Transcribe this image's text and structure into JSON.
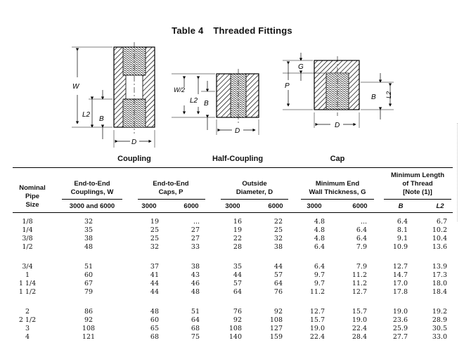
{
  "title": {
    "number": "Table 4",
    "name": "Threaded Fittings"
  },
  "figures": [
    {
      "caption": "Coupling",
      "labels": [
        "W",
        "L2",
        "B",
        "D"
      ]
    },
    {
      "caption": "Half-Coupling",
      "labels": [
        "W/2",
        "L2",
        "B",
        "D"
      ]
    },
    {
      "caption": "Cap",
      "labels": [
        "G",
        "P",
        "B",
        "L2",
        "D"
      ]
    }
  ],
  "headers": {
    "nominal": [
      "Nominal",
      "Pipe",
      "Size"
    ],
    "couplings": [
      "End-to-End",
      "Couplings, W"
    ],
    "caps": [
      "End-to-End",
      "Caps, P"
    ],
    "outside": [
      "Outside",
      "Diameter, D"
    ],
    "wall": [
      "Minimum End",
      "Wall Thickness, G"
    ],
    "thread": [
      "Minimum Length",
      "of Thread",
      "[Note (1)]"
    ],
    "sub": [
      "3000 and 6000",
      "3000",
      "6000",
      "3000",
      "6000",
      "3000",
      "6000",
      "B",
      "L2"
    ]
  },
  "rows": [
    [
      "1/8",
      "32",
      "19",
      "...",
      "16",
      "22",
      "4.8",
      "...",
      "6.4",
      "6.7"
    ],
    [
      "1/4",
      "35",
      "25",
      "27",
      "19",
      "25",
      "4.8",
      "6.4",
      "8.1",
      "10.2"
    ],
    [
      "3/8",
      "38",
      "25",
      "27",
      "22",
      "32",
      "4.8",
      "6.4",
      "9.1",
      "10.4"
    ],
    [
      "1/2",
      "48",
      "32",
      "33",
      "28",
      "38",
      "6.4",
      "7.9",
      "10.9",
      "13.6"
    ],
    [
      "3/4",
      "51",
      "37",
      "38",
      "35",
      "44",
      "6.4",
      "7.9",
      "12.7",
      "13.9"
    ],
    [
      "1",
      "60",
      "41",
      "43",
      "44",
      "57",
      "9.7",
      "11.2",
      "14.7",
      "17.3"
    ],
    [
      "1 1/4",
      "67",
      "44",
      "46",
      "57",
      "64",
      "9.7",
      "11.2",
      "17.0",
      "18.0"
    ],
    [
      "1 1/2",
      "79",
      "44",
      "48",
      "64",
      "76",
      "11.2",
      "12.7",
      "17.8",
      "18.4"
    ],
    [
      "2",
      "86",
      "48",
      "51",
      "76",
      "92",
      "12.7",
      "15.7",
      "19.0",
      "19.2"
    ],
    [
      "2 1/2",
      "92",
      "60",
      "64",
      "92",
      "108",
      "15.7",
      "19.0",
      "23.6",
      "28.9"
    ],
    [
      "3",
      "108",
      "65",
      "68",
      "108",
      "127",
      "19.0",
      "22.4",
      "25.9",
      "30.5"
    ],
    [
      "4",
      "121",
      "68",
      "75",
      "140",
      "159",
      "22.4",
      "28.4",
      "27.7",
      "33.0"
    ]
  ]
}
